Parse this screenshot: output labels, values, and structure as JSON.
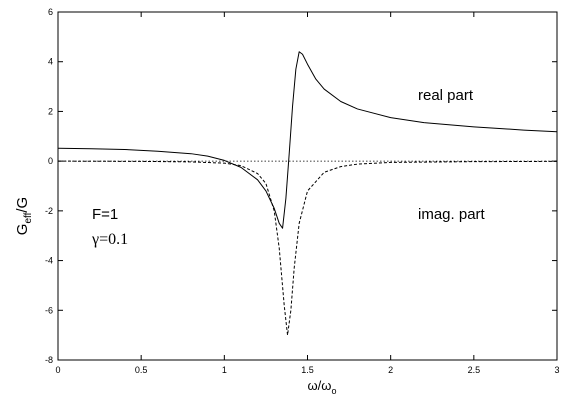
{
  "chart_data": {
    "type": "line",
    "xlim": [
      0,
      3
    ],
    "ylim": [
      -8,
      6
    ],
    "x_ticks": [
      "0",
      "0.5",
      "1",
      "1.5",
      "2",
      "2.5",
      "3"
    ],
    "y_ticks": [
      "-8",
      "-6",
      "-4",
      "-2",
      "0",
      "2",
      "4",
      "6"
    ],
    "x_tick_values": [
      0,
      0.5,
      1,
      1.5,
      2,
      2.5,
      3
    ],
    "y_tick_values": [
      -8,
      -6,
      -4,
      -2,
      0,
      2,
      4,
      6
    ],
    "xlabel": "ω/ω",
    "xlabel_sub": "o",
    "ylabel": "G",
    "ylabel_sub": "eff",
    "ylabel_tail": "/G",
    "grid": false,
    "zero_line": true,
    "annotations": {
      "real_part": "real part",
      "imag_part": "imag. part",
      "param_f": "F=1",
      "param_gamma": "γ=0.1"
    },
    "series": [
      {
        "style": "solid",
        "x": [
          0,
          0.2,
          0.4,
          0.6,
          0.8,
          0.9,
          1.0,
          1.1,
          1.2,
          1.25,
          1.3,
          1.33,
          1.35,
          1.37,
          1.39,
          1.41,
          1.43,
          1.45,
          1.47,
          1.5,
          1.55,
          1.6,
          1.7,
          1.8,
          2.0,
          2.2,
          2.5,
          2.8,
          3.0
        ],
        "y": [
          0.52,
          0.5,
          0.47,
          0.4,
          0.3,
          0.2,
          0.03,
          -0.25,
          -0.75,
          -1.2,
          -1.9,
          -2.5,
          -2.7,
          -1.5,
          0.3,
          2.2,
          3.7,
          4.4,
          4.3,
          3.9,
          3.3,
          2.9,
          2.4,
          2.1,
          1.75,
          1.55,
          1.38,
          1.25,
          1.18
        ]
      },
      {
        "style": "dashed",
        "x": [
          0,
          0.5,
          0.8,
          1.0,
          1.1,
          1.2,
          1.25,
          1.3,
          1.33,
          1.36,
          1.38,
          1.4,
          1.42,
          1.45,
          1.5,
          1.6,
          1.7,
          1.8,
          2.0,
          2.5,
          3.0
        ],
        "y": [
          0,
          -0.01,
          -0.03,
          -0.08,
          -0.18,
          -0.5,
          -0.9,
          -2.0,
          -3.5,
          -5.8,
          -7.0,
          -6.0,
          -4.3,
          -2.5,
          -1.2,
          -0.45,
          -0.22,
          -0.12,
          -0.05,
          -0.02,
          -0.01
        ]
      }
    ]
  }
}
